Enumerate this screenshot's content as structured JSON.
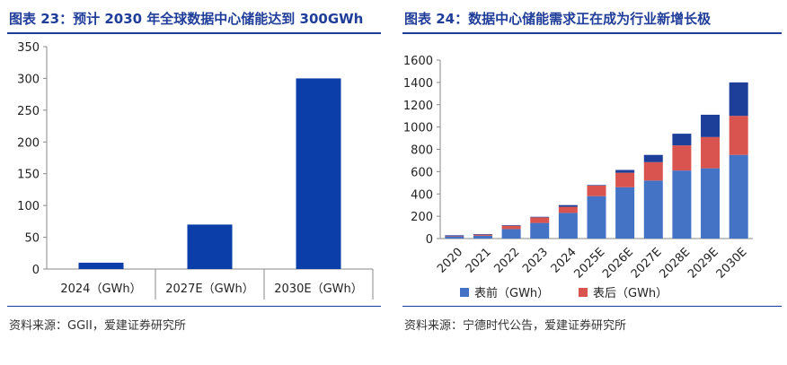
{
  "chart_data": [
    {
      "type": "bar",
      "title": "图表 23：预计 2030 年全球数据中心储能达到 300GWh",
      "source": "资料来源：GGII，爱建证券研究所",
      "categories": [
        "2024（GWh）",
        "2027E（GWh）",
        "2030E（GWh）"
      ],
      "values": [
        10,
        70,
        300
      ],
      "ylim": [
        0,
        350
      ],
      "yticks": [
        0,
        50,
        100,
        150,
        200,
        250,
        300,
        350
      ],
      "xlabel": "",
      "ylabel": "",
      "grid": false,
      "color": "#0b3ea8"
    },
    {
      "type": "bar",
      "stacked": true,
      "title": "图表 24：数据中心储能需求正在成为行业新增长极",
      "source": "资料来源：宁德时代公告，爱建证券研究所",
      "categories": [
        "2020",
        "2021",
        "2022",
        "2023",
        "2024",
        "2025E",
        "2026E",
        "2027E",
        "2028E",
        "2029E",
        "2030E"
      ],
      "series": [
        {
          "name": "表前（GWh）",
          "color": "#4472c4",
          "values": [
            20,
            25,
            85,
            140,
            230,
            380,
            460,
            520,
            610,
            630,
            750
          ]
        },
        {
          "name": "表后（GWh）",
          "color": "#d9534f",
          "values": [
            5,
            10,
            30,
            50,
            55,
            95,
            130,
            165,
            225,
            280,
            350
          ]
        },
        {
          "name": "",
          "color": "#1e3f99",
          "values": [
            5,
            5,
            5,
            5,
            15,
            5,
            25,
            65,
            105,
            200,
            300
          ]
        }
      ],
      "ylim": [
        0,
        1600
      ],
      "yticks": [
        0,
        200,
        400,
        600,
        800,
        1000,
        1200,
        1400,
        1600
      ],
      "legend": "bottom",
      "grid": false
    }
  ]
}
